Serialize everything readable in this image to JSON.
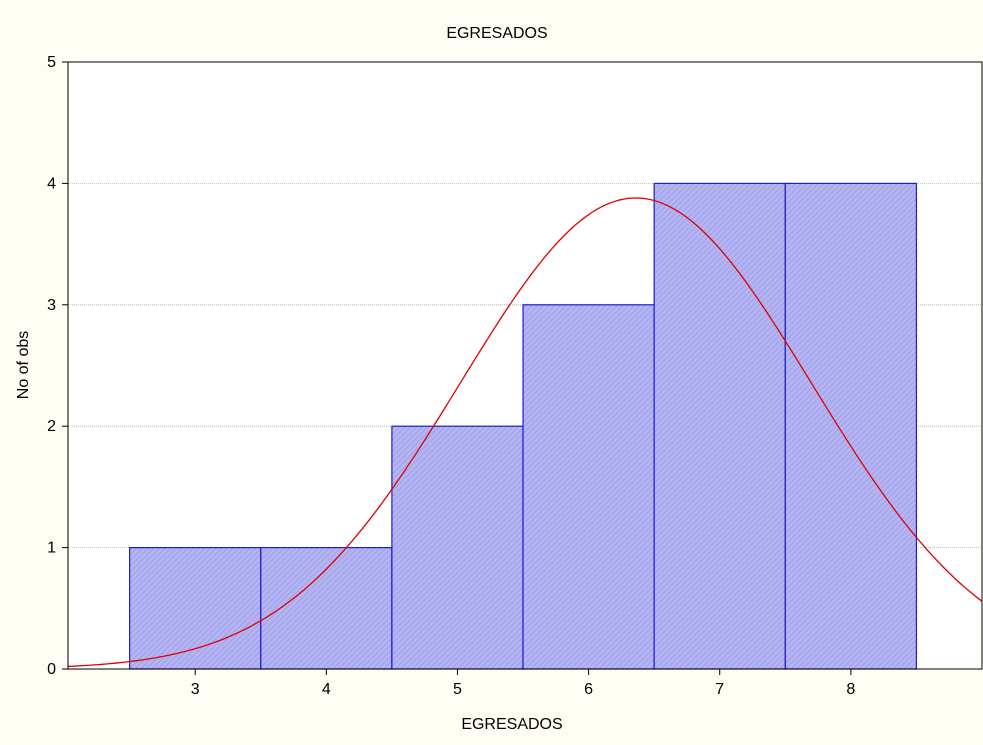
{
  "chart_data": {
    "type": "bar",
    "title": "EGRESADOS",
    "xlabel": "EGRESADOS",
    "ylabel": "No of obs",
    "categories": [
      3,
      4,
      5,
      6,
      7,
      8
    ],
    "values": [
      1,
      1,
      2,
      3,
      4,
      4
    ],
    "bin_edges": [
      2.5,
      3.5,
      4.5,
      5.5,
      6.5,
      7.5,
      8.5
    ],
    "xlim": [
      2.03,
      9.0
    ],
    "ylim": [
      0,
      5
    ],
    "yticks": [
      0,
      1,
      2,
      3,
      4,
      5
    ],
    "xticks": [
      3,
      4,
      5,
      6,
      7,
      8
    ],
    "grid": true,
    "fit_curve": {
      "type": "normal",
      "mean": 6.36,
      "peak": 3.88,
      "sd": 1.34
    },
    "colors": {
      "bar_fill": "#b4b4f2",
      "bar_hatch": "#9a9aea",
      "bar_edge": "#1c1cd0",
      "curve": "#e00000",
      "background": "#fffdf4",
      "plot_background": "#ffffff",
      "grid": "#b0b0b0"
    }
  }
}
